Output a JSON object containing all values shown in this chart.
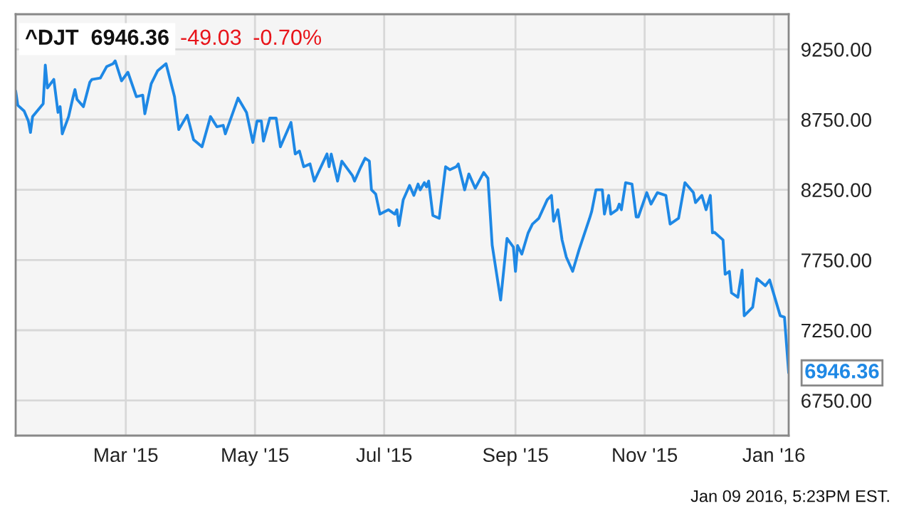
{
  "chart_data": {
    "type": "line",
    "title": "^DJT  6946.36",
    "annotations": [
      "-49.03",
      "-0.70%",
      "Jan 09 2016, 5:23PM EST.",
      {
        "text": "6946.36",
        "x": "2016-01-08",
        "y": 6946.36
      }
    ],
    "x": [
      "2015-01-08",
      "2015-01-09",
      "2015-01-12",
      "2015-01-14",
      "2015-01-15",
      "2015-01-16",
      "2015-01-21",
      "2015-01-22",
      "2015-01-23",
      "2015-01-26",
      "2015-01-28",
      "2015-01-29",
      "2015-01-30",
      "2015-02-02",
      "2015-02-04",
      "2015-02-05",
      "2015-02-06",
      "2015-02-09",
      "2015-02-12",
      "2015-02-13",
      "2015-02-17",
      "2015-02-20",
      "2015-02-23",
      "2015-02-24",
      "2015-02-27",
      "2015-03-02",
      "2015-03-06",
      "2015-03-09",
      "2015-03-10",
      "2015-03-13",
      "2015-03-16",
      "2015-03-20",
      "2015-03-24",
      "2015-03-26",
      "2015-03-30",
      "2015-04-02",
      "2015-04-06",
      "2015-04-10",
      "2015-04-13",
      "2015-04-16",
      "2015-04-17",
      "2015-04-23",
      "2015-04-27",
      "2015-04-30",
      "2015-05-02",
      "2015-05-04",
      "2015-05-05",
      "2015-05-08",
      "2015-05-11",
      "2015-05-13",
      "2015-05-18",
      "2015-05-20",
      "2015-05-22",
      "2015-05-24",
      "2015-05-27",
      "2015-05-29",
      "2015-06-04",
      "2015-06-05",
      "2015-06-06",
      "2015-06-09",
      "2015-06-11",
      "2015-06-16",
      "2015-06-17",
      "2015-06-20",
      "2015-06-22",
      "2015-06-24",
      "2015-06-25",
      "2015-06-27",
      "2015-06-29",
      "2015-07-03",
      "2015-07-06",
      "2015-07-07",
      "2015-07-08",
      "2015-07-10",
      "2015-07-13",
      "2015-07-15",
      "2015-07-17",
      "2015-07-18",
      "2015-07-20",
      "2015-07-21",
      "2015-07-22",
      "2015-07-24",
      "2015-07-27",
      "2015-07-30",
      "2015-08-01",
      "2015-08-04",
      "2015-08-05",
      "2015-08-08",
      "2015-08-10",
      "2015-08-13",
      "2015-08-17",
      "2015-08-19",
      "2015-08-21",
      "2015-08-25",
      "2015-08-28",
      "2015-08-31",
      "2015-09-01",
      "2015-09-02",
      "2015-09-04",
      "2015-09-07",
      "2015-09-09",
      "2015-09-12",
      "2015-09-16",
      "2015-09-18",
      "2015-09-19",
      "2015-09-21",
      "2015-09-23",
      "2015-09-25",
      "2015-09-28",
      "2015-10-01",
      "2015-10-06",
      "2015-10-07",
      "2015-10-09",
      "2015-10-12",
      "2015-10-13",
      "2015-10-15",
      "2015-10-16",
      "2015-10-19",
      "2015-10-20",
      "2015-10-21",
      "2015-10-23",
      "2015-10-26",
      "2015-10-28",
      "2015-10-29",
      "2015-11-02",
      "2015-11-04",
      "2015-11-07",
      "2015-11-11",
      "2015-11-13",
      "2015-11-17",
      "2015-11-20",
      "2015-11-24",
      "2015-11-25",
      "2015-11-28",
      "2015-11-30",
      "2015-12-02",
      "2015-12-03",
      "2015-12-04",
      "2015-12-08",
      "2015-12-09",
      "2015-12-11",
      "2015-12-12",
      "2015-12-15",
      "2015-12-17",
      "2015-12-18",
      "2015-12-22",
      "2015-12-24",
      "2015-12-28",
      "2015-12-30",
      "2016-01-04",
      "2016-01-06",
      "2016-01-08"
    ],
    "series": [
      {
        "color": "#1e88e5",
        "values": [
          8954,
          8852,
          8811,
          8740,
          8658,
          8771,
          8863,
          9138,
          8975,
          9036,
          8801,
          8842,
          8648,
          8771,
          8903,
          8964,
          8893,
          8842,
          9015,
          9036,
          9046,
          9128,
          9148,
          9168,
          9026,
          9087,
          8913,
          8924,
          8791,
          9005,
          9097,
          9148,
          8913,
          8679,
          8781,
          8607,
          8556,
          8771,
          8699,
          8709,
          8648,
          8903,
          8801,
          8587,
          8740,
          8740,
          8597,
          8760,
          8760,
          8556,
          8730,
          8505,
          8526,
          8414,
          8434,
          8312,
          8505,
          8414,
          8505,
          8312,
          8454,
          8352,
          8312,
          8414,
          8475,
          8454,
          8250,
          8220,
          8077,
          8108,
          8077,
          8108,
          7995,
          8179,
          8281,
          8210,
          8291,
          8250,
          8301,
          8271,
          8312,
          8067,
          8047,
          8414,
          8393,
          8414,
          8434,
          8250,
          8363,
          8261,
          8373,
          8332,
          7856,
          7465,
          7904,
          7842,
          7669,
          7853,
          7792,
          7944,
          8006,
          8047,
          8179,
          8210,
          8026,
          8108,
          7893,
          7771,
          7669,
          7822,
          8047,
          8097,
          8250,
          8250,
          8077,
          8210,
          8077,
          8108,
          8148,
          8108,
          8301,
          8291,
          8057,
          8057,
          8230,
          8148,
          8230,
          8210,
          8006,
          8047,
          8301,
          8230,
          8159,
          8210,
          8108,
          8210,
          7944,
          7947,
          7893,
          7649,
          7669,
          7516,
          7485,
          7679,
          7353,
          7414,
          7618,
          7567,
          7608,
          7353,
          7343,
          6946.36
        ]
      }
    ],
    "xlim": [
      "2015-01-08",
      "2016-01-08"
    ],
    "xticks": [
      {
        "value": "2015-03-01",
        "label": "Mar '15"
      },
      {
        "value": "2015-05-01",
        "label": "May '15"
      },
      {
        "value": "2015-07-01",
        "label": "Jul '15"
      },
      {
        "value": "2015-09-01",
        "label": "Sep '15"
      },
      {
        "value": "2015-11-01",
        "label": "Nov '15"
      },
      {
        "value": "2016-01-01",
        "label": "Jan '16"
      }
    ],
    "ylim": [
      6500,
      9500
    ],
    "yticks": [
      {
        "value": 6750,
        "label": "6750.00"
      },
      {
        "value": 7250,
        "label": "7250.00"
      },
      {
        "value": 7750,
        "label": "7750.00"
      },
      {
        "value": 8250,
        "label": "8250.00"
      },
      {
        "value": 8750,
        "label": "8750.00"
      },
      {
        "value": 9250,
        "label": "9250.00"
      }
    ],
    "grid": true
  }
}
